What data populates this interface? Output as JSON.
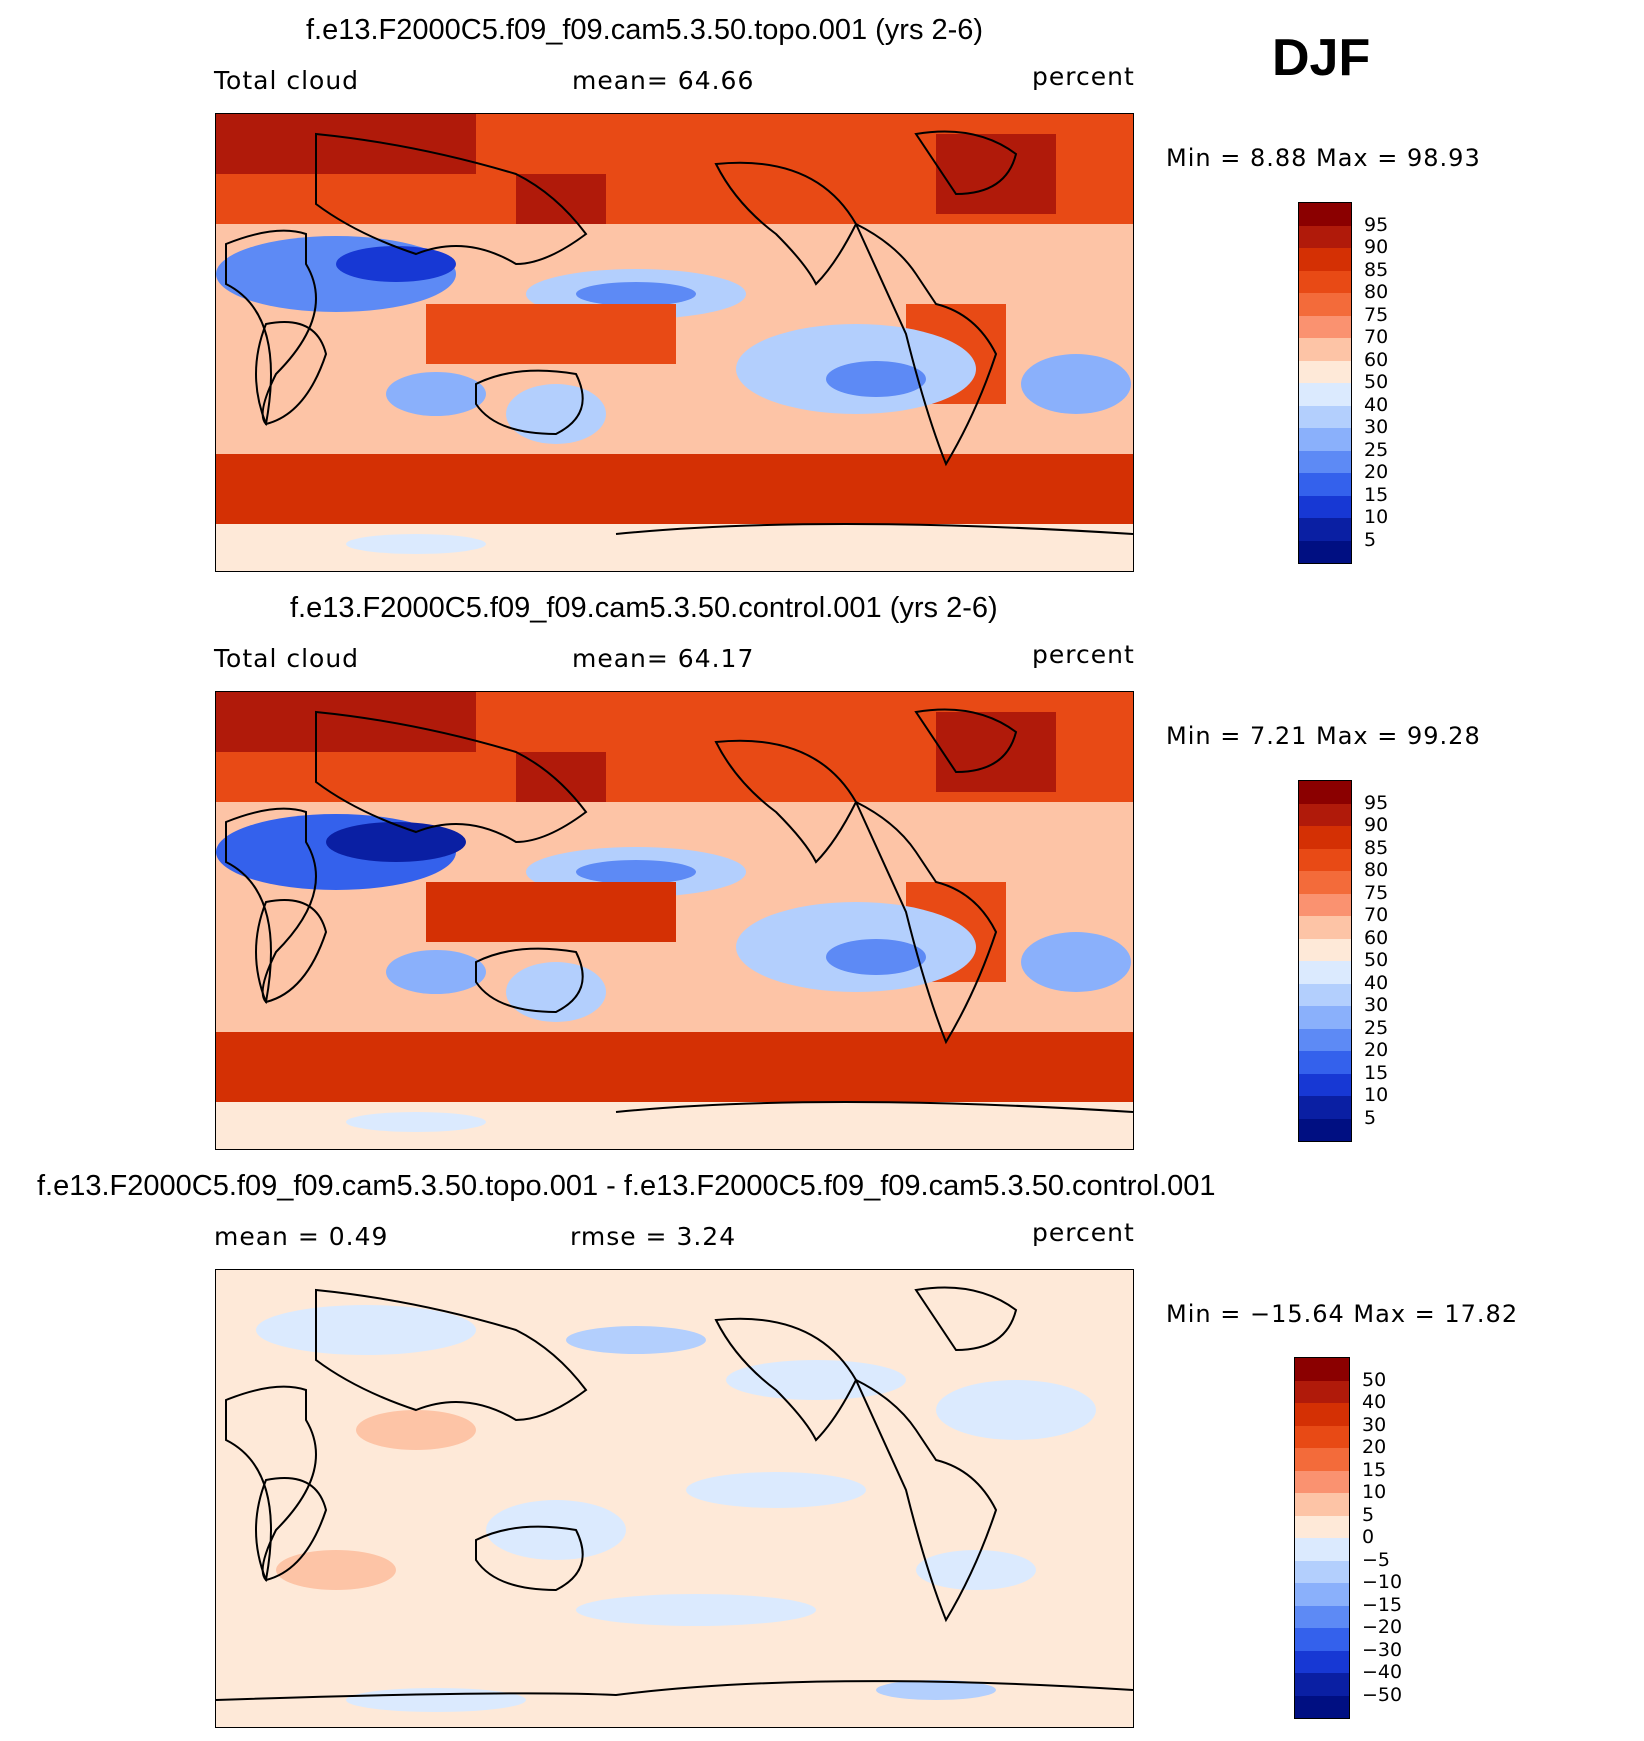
{
  "season": "DJF",
  "panels": [
    {
      "title": "f.e13.F2000C5.f09_f09.cam5.3.50.topo.001 (yrs 2-6)",
      "left_label": "Total cloud",
      "center_label": "mean=   64.66",
      "right_label": "percent",
      "min_max": "Min =    8.88  Max =   98.93",
      "colorbar": {
        "labels": [
          "95",
          "90",
          "85",
          "80",
          "75",
          "70",
          "60",
          "50",
          "40",
          "30",
          "25",
          "20",
          "15",
          "10",
          "5"
        ],
        "colors": [
          "#8b0000",
          "#b01a0a",
          "#d43004",
          "#e84a15",
          "#f36b3a",
          "#fa9270",
          "#fdc4a6",
          "#fee9d8",
          "#dbeafe",
          "#b3cffd",
          "#8ab0fb",
          "#5d8af5",
          "#3461ec",
          "#1738d4",
          "#0a1fa3",
          "#000f82"
        ]
      }
    },
    {
      "title": "f.e13.F2000C5.f09_f09.cam5.3.50.control.001 (yrs 2-6)",
      "left_label": "Total cloud",
      "center_label": "mean=   64.17",
      "right_label": "percent",
      "min_max": "Min =    7.21  Max =   99.28",
      "colorbar": {
        "labels": [
          "95",
          "90",
          "85",
          "80",
          "75",
          "70",
          "60",
          "50",
          "40",
          "30",
          "25",
          "20",
          "15",
          "10",
          "5"
        ],
        "colors": [
          "#8b0000",
          "#b01a0a",
          "#d43004",
          "#e84a15",
          "#f36b3a",
          "#fa9270",
          "#fdc4a6",
          "#fee9d8",
          "#dbeafe",
          "#b3cffd",
          "#8ab0fb",
          "#5d8af5",
          "#3461ec",
          "#1738d4",
          "#0a1fa3",
          "#000f82"
        ]
      }
    },
    {
      "title": "f.e13.F2000C5.f09_f09.cam5.3.50.topo.001 - f.e13.F2000C5.f09_f09.cam5.3.50.control.001",
      "left_label": "mean =    0.49",
      "center_label": "rmse =    3.24",
      "right_label": "percent",
      "min_max": "Min = −15.64  Max =   17.82",
      "colorbar": {
        "labels": [
          "50",
          "40",
          "30",
          "20",
          "15",
          "10",
          "5",
          "0",
          "−5",
          "−10",
          "−15",
          "−20",
          "−30",
          "−40",
          "−50"
        ],
        "colors": [
          "#8b0000",
          "#b01a0a",
          "#d43004",
          "#e84a15",
          "#f36b3a",
          "#fa9270",
          "#fdc4a6",
          "#fee9d8",
          "#dbeafe",
          "#b3cffd",
          "#8ab0fb",
          "#5d8af5",
          "#3461ec",
          "#1738d4",
          "#0a1fa3",
          "#000f82"
        ]
      }
    }
  ]
}
